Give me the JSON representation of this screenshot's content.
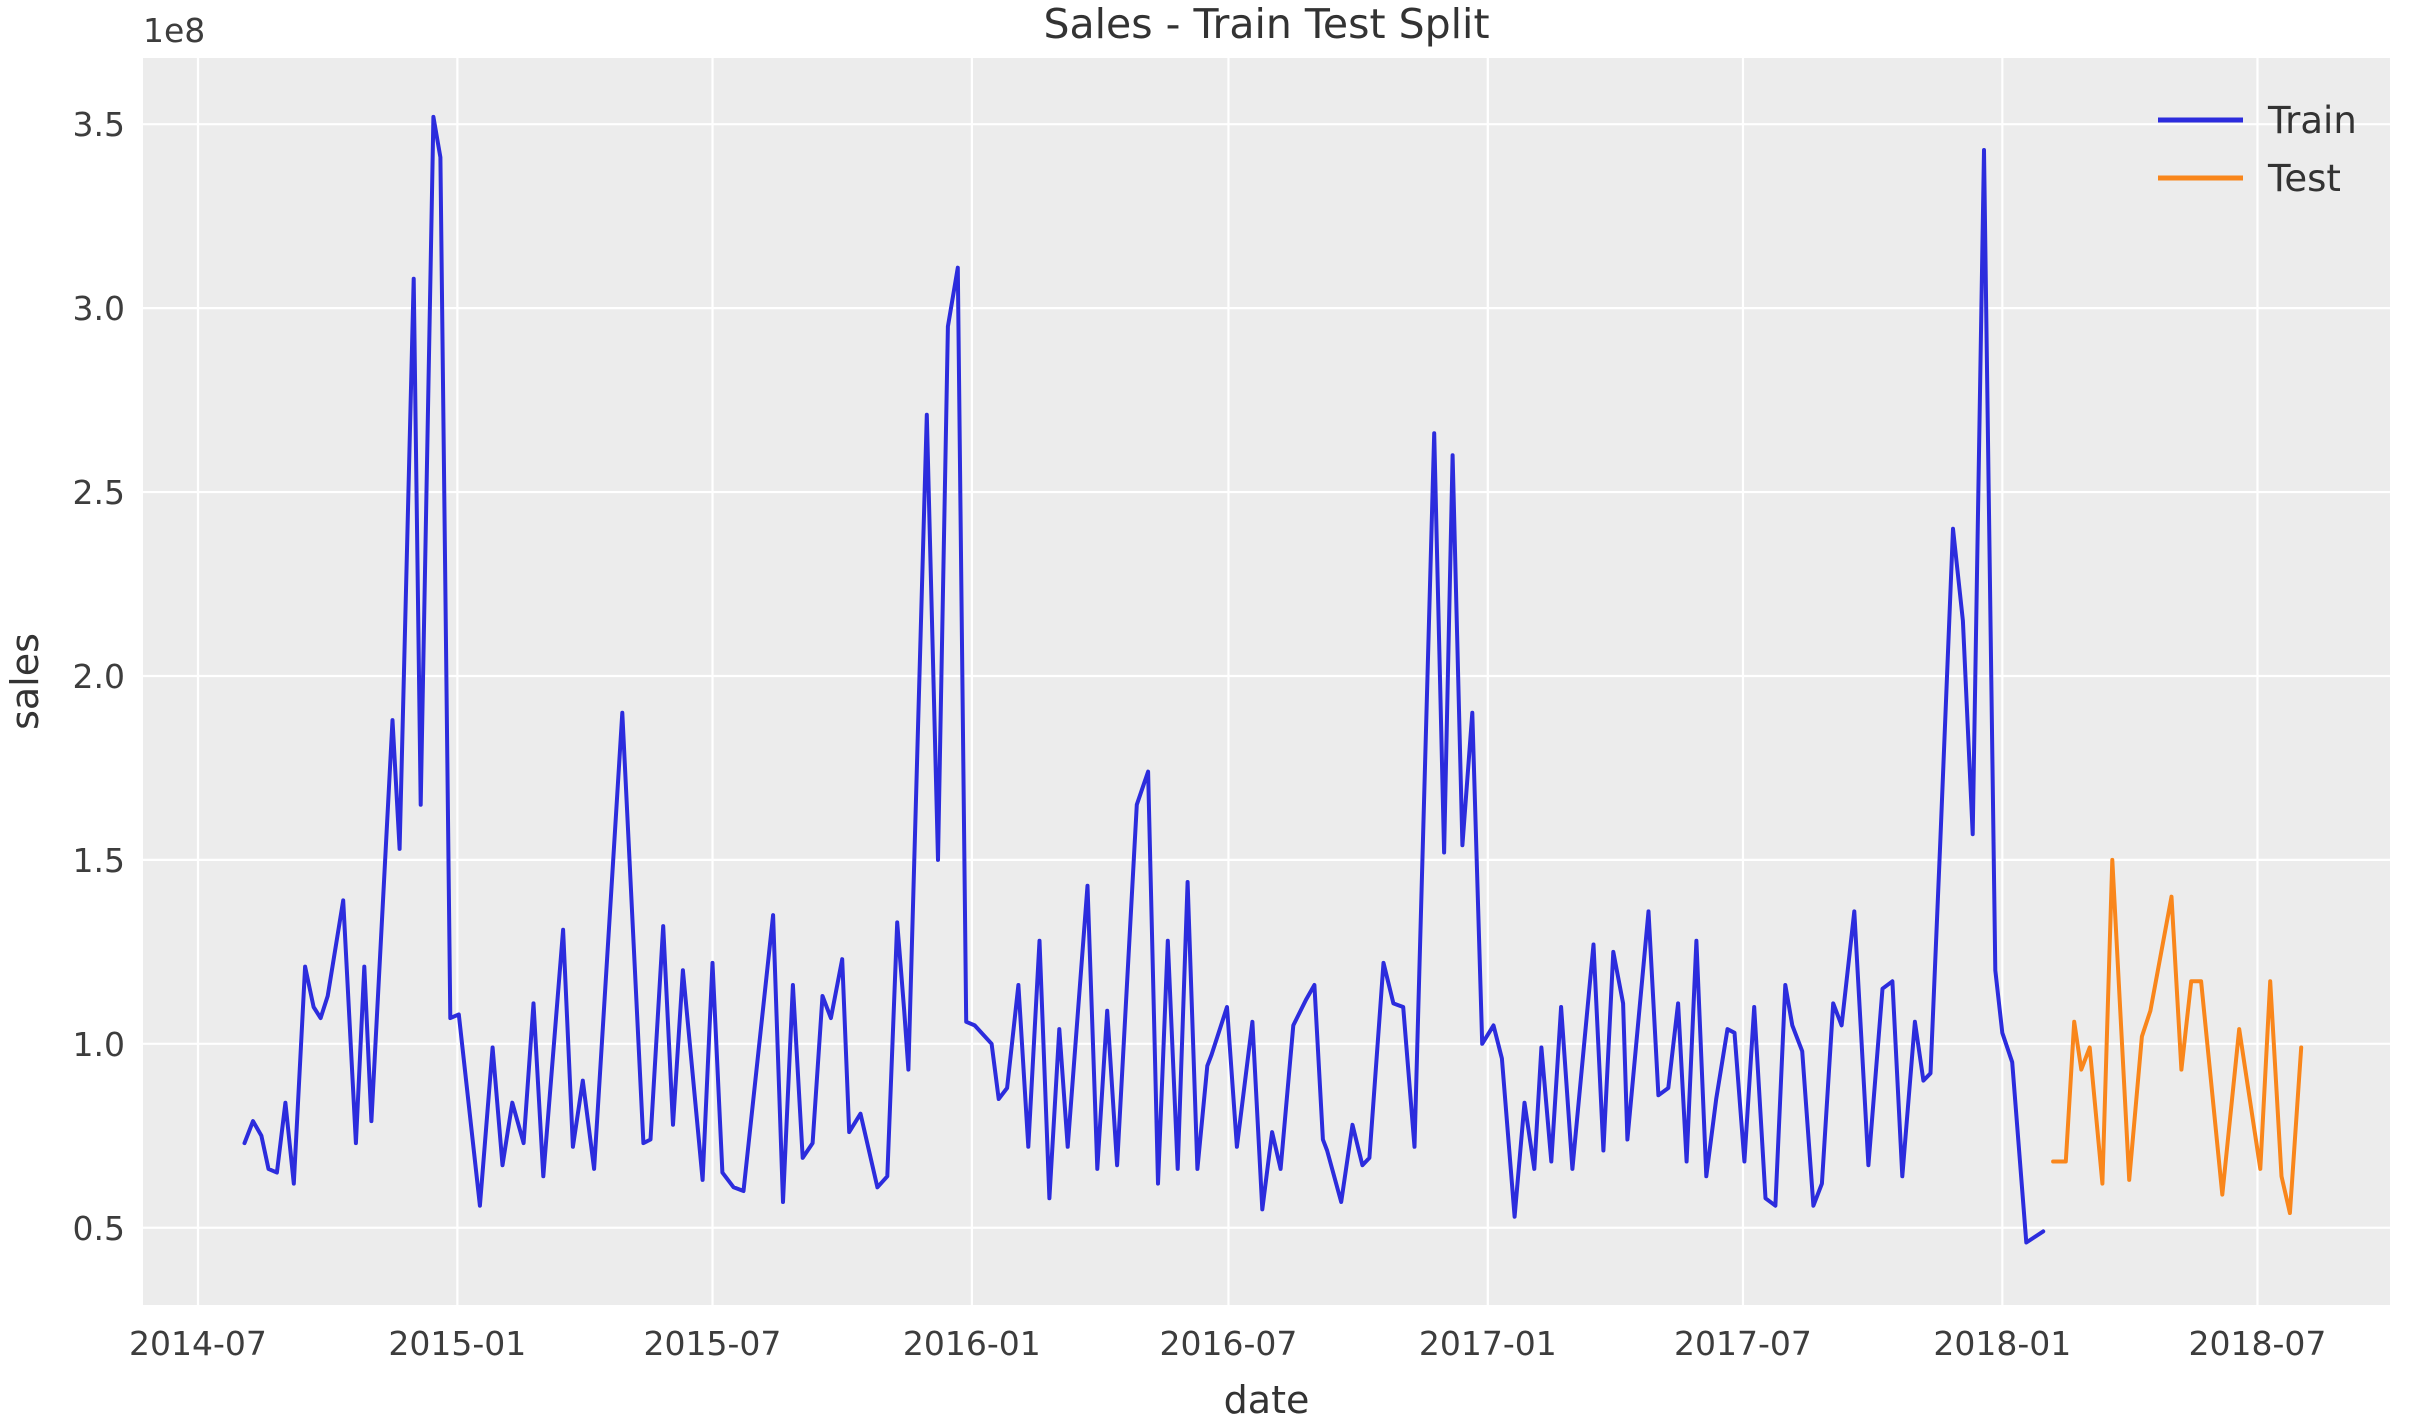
{
  "title": "Sales - Train Test Split",
  "offset_text": "1e8",
  "chart_data": {
    "type": "line",
    "title": "Sales - Train Test Split",
    "xlabel": "date",
    "ylabel": "sales",
    "x_unit": "days since 2014-07-01, weekly samples",
    "y_unit": "sales in units of 1e8",
    "xlim_days": [
      -39,
      1555
    ],
    "ylim": [
      0.29,
      3.68
    ],
    "grid": "on, white gridlines on light gray axes background",
    "legend_position": "upper right, no frame",
    "x_ticks": [
      {
        "d": 0,
        "label": "2014-07"
      },
      {
        "d": 184,
        "label": "2015-01"
      },
      {
        "d": 365,
        "label": "2015-07"
      },
      {
        "d": 549,
        "label": "2016-01"
      },
      {
        "d": 731,
        "label": "2016-07"
      },
      {
        "d": 915,
        "label": "2017-01"
      },
      {
        "d": 1096,
        "label": "2017-07"
      },
      {
        "d": 1280,
        "label": "2018-01"
      },
      {
        "d": 1461,
        "label": "2018-07"
      }
    ],
    "y_ticks": [
      {
        "v": 0.5,
        "label": "0.5"
      },
      {
        "v": 1.0,
        "label": "1.0"
      },
      {
        "v": 1.5,
        "label": "1.5"
      },
      {
        "v": 2.0,
        "label": "2.0"
      },
      {
        "v": 2.5,
        "label": "2.5"
      },
      {
        "v": 3.0,
        "label": "3.0"
      },
      {
        "v": 3.5,
        "label": "3.5"
      }
    ],
    "series": [
      {
        "name": "Train",
        "color": "#2c2cdd",
        "points": [
          [
            33,
            0.73
          ],
          [
            39,
            0.79
          ],
          [
            45,
            0.75
          ],
          [
            50,
            0.66
          ],
          [
            56,
            0.65
          ],
          [
            62,
            0.84
          ],
          [
            68,
            0.62
          ],
          [
            76,
            1.21
          ],
          [
            82,
            1.1
          ],
          [
            87,
            1.07
          ],
          [
            92,
            1.13
          ],
          [
            103,
            1.39
          ],
          [
            112,
            0.73
          ],
          [
            118,
            1.21
          ],
          [
            123,
            0.79
          ],
          [
            138,
            1.88
          ],
          [
            143,
            1.53
          ],
          [
            153,
            3.08
          ],
          [
            158,
            1.65
          ],
          [
            167,
            3.52
          ],
          [
            172,
            3.41
          ],
          [
            179,
            1.07
          ],
          [
            185,
            1.08
          ],
          [
            200,
            0.56
          ],
          [
            209,
            0.99
          ],
          [
            216,
            0.67
          ],
          [
            223,
            0.84
          ],
          [
            231,
            0.73
          ],
          [
            238,
            1.11
          ],
          [
            245,
            0.64
          ],
          [
            259,
            1.31
          ],
          [
            266,
            0.72
          ],
          [
            273,
            0.9
          ],
          [
            281,
            0.66
          ],
          [
            301,
            1.9
          ],
          [
            316,
            0.73
          ],
          [
            321,
            0.74
          ],
          [
            330,
            1.32
          ],
          [
            337,
            0.78
          ],
          [
            344,
            1.2
          ],
          [
            358,
            0.63
          ],
          [
            365,
            1.22
          ],
          [
            372,
            0.65
          ],
          [
            380,
            0.61
          ],
          [
            387,
            0.6
          ],
          [
            408,
            1.35
          ],
          [
            415,
            0.57
          ],
          [
            422,
            1.16
          ],
          [
            429,
            0.69
          ],
          [
            436,
            0.73
          ],
          [
            443,
            1.13
          ],
          [
            449,
            1.07
          ],
          [
            457,
            1.23
          ],
          [
            462,
            0.76
          ],
          [
            470,
            0.81
          ],
          [
            482,
            0.61
          ],
          [
            489,
            0.64
          ],
          [
            496,
            1.33
          ],
          [
            501,
            1.09
          ],
          [
            504,
            0.93
          ],
          [
            517,
            2.71
          ],
          [
            525,
            1.5
          ],
          [
            532,
            2.95
          ],
          [
            539,
            3.11
          ],
          [
            545,
            1.06
          ],
          [
            551,
            1.05
          ],
          [
            563,
            1.0
          ],
          [
            568,
            0.85
          ],
          [
            574,
            0.88
          ],
          [
            582,
            1.16
          ],
          [
            589,
            0.72
          ],
          [
            597,
            1.28
          ],
          [
            604,
            0.58
          ],
          [
            611,
            1.04
          ],
          [
            617,
            0.72
          ],
          [
            631,
            1.43
          ],
          [
            638,
            0.66
          ],
          [
            645,
            1.09
          ],
          [
            652,
            0.67
          ],
          [
            666,
            1.65
          ],
          [
            674,
            1.74
          ],
          [
            681,
            0.62
          ],
          [
            688,
            1.28
          ],
          [
            695,
            0.66
          ],
          [
            702,
            1.44
          ],
          [
            709,
            0.66
          ],
          [
            716,
            0.94
          ],
          [
            719,
            0.97
          ],
          [
            730,
            1.1
          ],
          [
            737,
            0.72
          ],
          [
            748,
            1.06
          ],
          [
            755,
            0.55
          ],
          [
            762,
            0.76
          ],
          [
            768,
            0.66
          ],
          [
            777,
            1.05
          ],
          [
            786,
            1.12
          ],
          [
            792,
            1.16
          ],
          [
            798,
            0.74
          ],
          [
            801,
            0.71
          ],
          [
            811,
            0.57
          ],
          [
            819,
            0.78
          ],
          [
            826,
            0.67
          ],
          [
            831,
            0.69
          ],
          [
            841,
            1.22
          ],
          [
            848,
            1.11
          ],
          [
            855,
            1.1
          ],
          [
            863,
            0.72
          ],
          [
            877,
            2.66
          ],
          [
            884,
            1.52
          ],
          [
            890,
            2.6
          ],
          [
            897,
            1.54
          ],
          [
            904,
            1.9
          ],
          [
            911,
            1.0
          ],
          [
            919,
            1.05
          ],
          [
            925,
            0.96
          ],
          [
            934,
            0.53
          ],
          [
            941,
            0.84
          ],
          [
            948,
            0.66
          ],
          [
            953,
            0.99
          ],
          [
            960,
            0.68
          ],
          [
            967,
            1.1
          ],
          [
            975,
            0.66
          ],
          [
            990,
            1.27
          ],
          [
            997,
            0.71
          ],
          [
            1004,
            1.25
          ],
          [
            1011,
            1.11
          ],
          [
            1014,
            0.74
          ],
          [
            1029,
            1.36
          ],
          [
            1036,
            0.86
          ],
          [
            1043,
            0.88
          ],
          [
            1050,
            1.11
          ],
          [
            1056,
            0.68
          ],
          [
            1063,
            1.28
          ],
          [
            1070,
            0.64
          ],
          [
            1077,
            0.85
          ],
          [
            1085,
            1.04
          ],
          [
            1090,
            1.03
          ],
          [
            1097,
            0.68
          ],
          [
            1104,
            1.1
          ],
          [
            1112,
            0.58
          ],
          [
            1119,
            0.56
          ],
          [
            1126,
            1.16
          ],
          [
            1131,
            1.05
          ],
          [
            1138,
            0.98
          ],
          [
            1146,
            0.56
          ],
          [
            1152,
            0.62
          ],
          [
            1160,
            1.11
          ],
          [
            1166,
            1.05
          ],
          [
            1175,
            1.36
          ],
          [
            1185,
            0.67
          ],
          [
            1195,
            1.15
          ],
          [
            1202,
            1.17
          ],
          [
            1209,
            0.64
          ],
          [
            1218,
            1.06
          ],
          [
            1224,
            0.9
          ],
          [
            1229,
            0.92
          ],
          [
            1236,
            1.55
          ],
          [
            1245,
            2.4
          ],
          [
            1252,
            2.15
          ],
          [
            1259,
            1.57
          ],
          [
            1267,
            3.43
          ],
          [
            1275,
            1.2
          ],
          [
            1280,
            1.03
          ],
          [
            1287,
            0.95
          ],
          [
            1297,
            0.46
          ],
          [
            1309,
            0.49
          ]
        ]
      },
      {
        "name": "Test",
        "color": "#f9861b",
        "points": [
          [
            1316,
            0.68
          ],
          [
            1325,
            0.68
          ],
          [
            1331,
            1.06
          ],
          [
            1336,
            0.93
          ],
          [
            1342,
            0.99
          ],
          [
            1351,
            0.62
          ],
          [
            1358,
            1.5
          ],
          [
            1370,
            0.63
          ],
          [
            1379,
            1.02
          ],
          [
            1385,
            1.09
          ],
          [
            1400,
            1.4
          ],
          [
            1407,
            0.93
          ],
          [
            1414,
            1.17
          ],
          [
            1421,
            1.17
          ],
          [
            1436,
            0.59
          ],
          [
            1448,
            1.04
          ],
          [
            1463,
            0.66
          ],
          [
            1470,
            1.17
          ],
          [
            1478,
            0.64
          ],
          [
            1484,
            0.54
          ],
          [
            1492,
            0.99
          ]
        ]
      }
    ],
    "legend": [
      {
        "label": "Train",
        "color": "#2c2cdd"
      },
      {
        "label": "Test",
        "color": "#f9861b"
      }
    ]
  },
  "colors": {
    "figure_bg": "#ffffff",
    "axes_bg": "#ececec",
    "gridline": "#ffffff",
    "text": "#333333",
    "tick_text": "#3d3d3d",
    "train_line": "#2c2cdd",
    "test_line": "#f9861b"
  }
}
